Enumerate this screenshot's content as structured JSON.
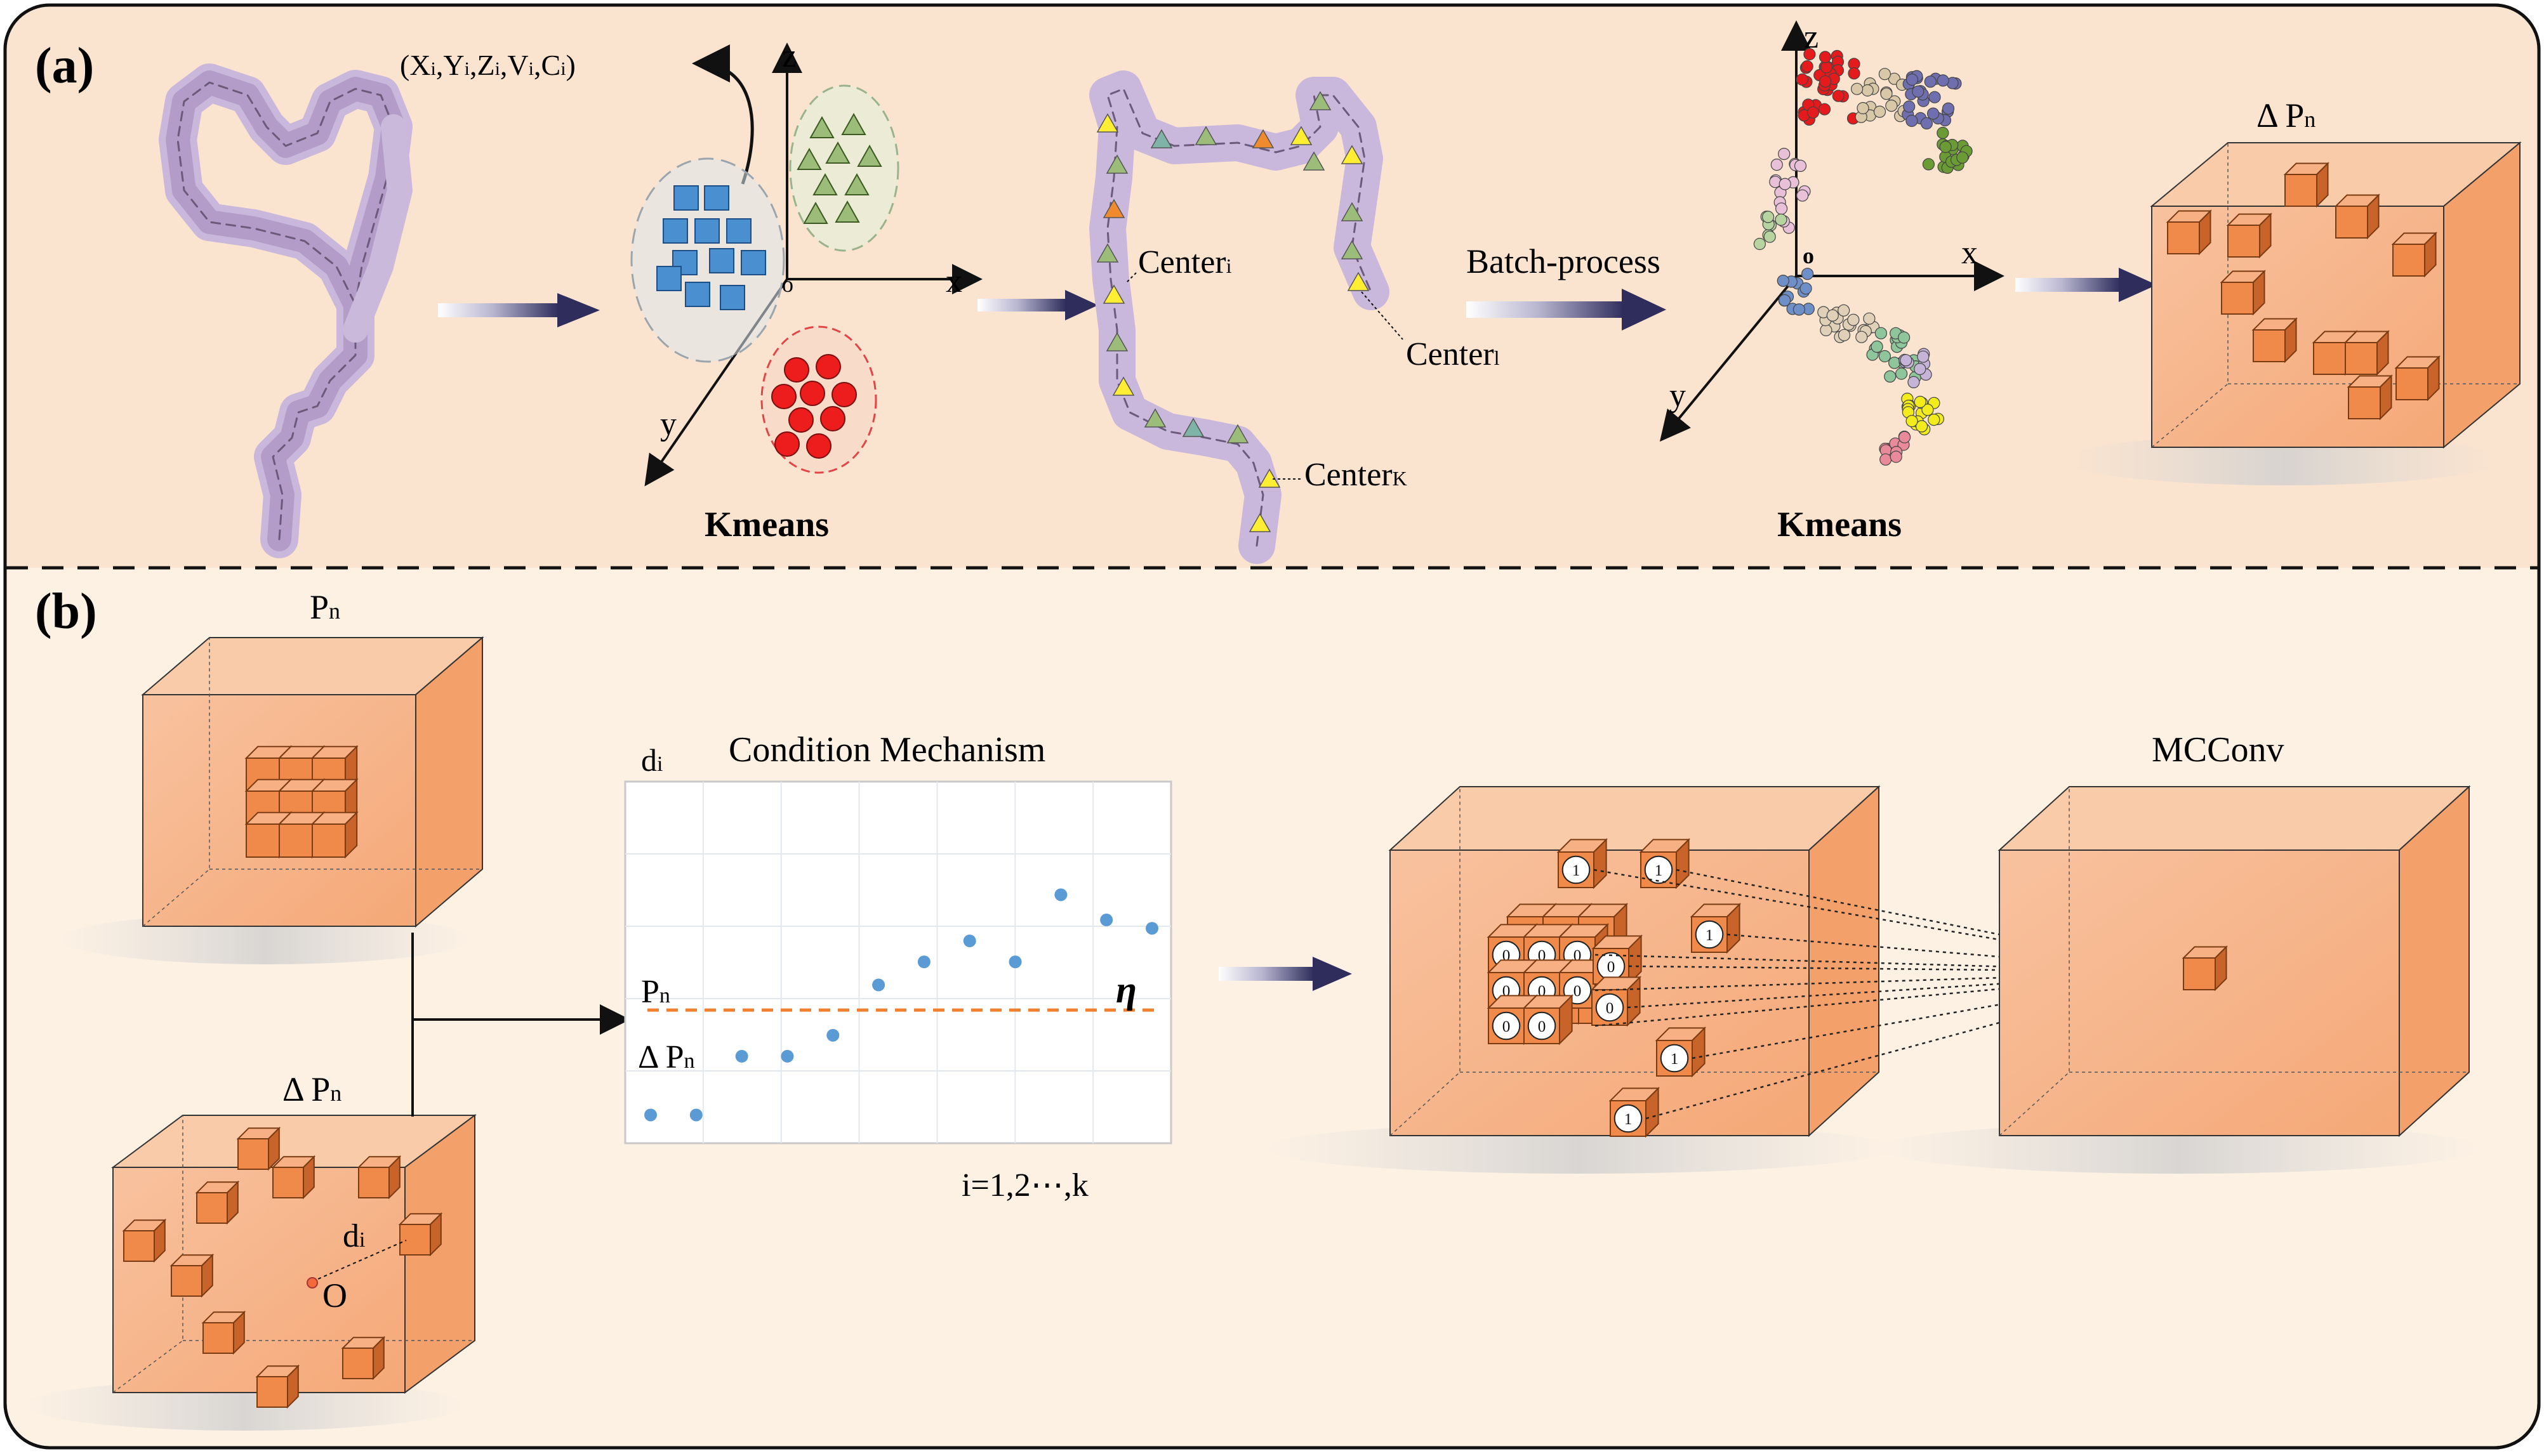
{
  "panel_a": {
    "label": "(a)",
    "tuple_label": "(Xi,Yi,Zi,Vi,Ci)",
    "axis_z": "z",
    "axis_x": "x",
    "axis_y": "y",
    "origin": "o",
    "kmeans_left": "Kmeans",
    "center_i": "Centeri",
    "center_l": "Centerl",
    "center_k": "CenterK",
    "batch_process": "Batch-process",
    "axis_z2": "z",
    "axis_x2": "x",
    "axis_y2": "y",
    "origin2": "o",
    "kmeans_right": "Kmeans",
    "delta_pn": "Δ Pn"
  },
  "panel_b": {
    "label": "(b)",
    "pn": "Pn",
    "delta_pn": "Δ Pn",
    "di_box": "di",
    "origin_box": "O",
    "chart_ylabel": "di",
    "chart_title": "Condition Mechanism",
    "pn_line": "Pn",
    "delta_pn_line": "Δ Pn",
    "eta": "η",
    "chart_xlabel": "i=1,2⋯,k",
    "mcconv": "MCConv",
    "cell_zero": "0",
    "cell_one": "1"
  },
  "colors": {
    "panel_a_bg": "#fbe5d0",
    "panel_b_bg": "#fdf1e4",
    "box_face": "#f7b58c",
    "cube_orange": "#f08a4b",
    "arrow_dark": "#2e2d5c",
    "threshold": "#f07f2e",
    "points": "#5b9bd5"
  },
  "chart_data": {
    "type": "scatter",
    "title": "Condition Mechanism",
    "xlabel": "i=1,2⋯,k",
    "ylabel": "di",
    "threshold_label": "η",
    "points_relative": [
      0.05,
      0.05,
      0.33,
      0.33,
      0.43,
      0.67,
      0.78,
      0.88,
      0.78,
      1.1,
      0.98,
      0.94
    ],
    "threshold_relative": 0.55
  }
}
